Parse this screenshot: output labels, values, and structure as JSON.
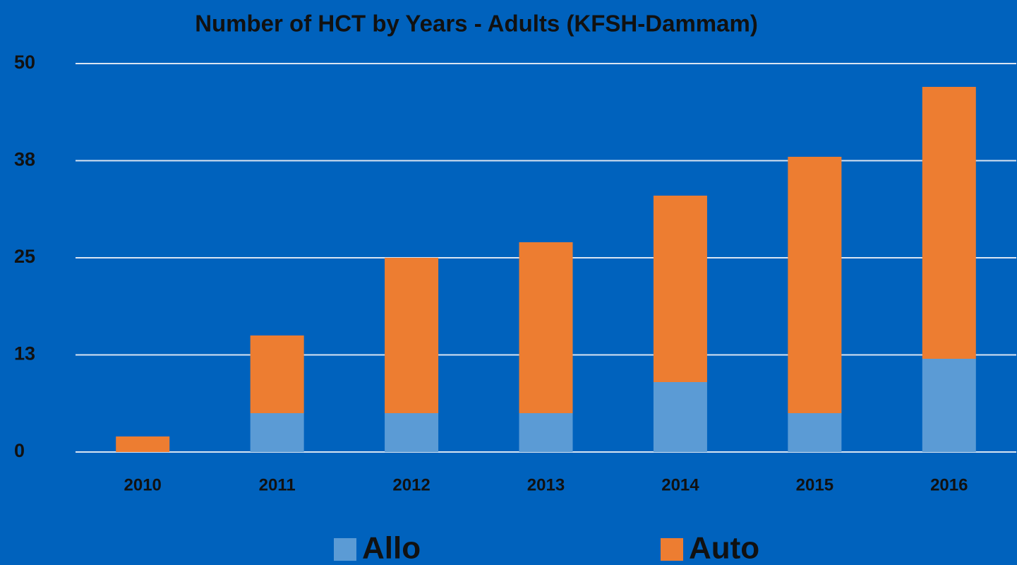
{
  "chart_data": {
    "type": "stacked_bar",
    "title": "Number of HCT by Years - Adults (KFSH-Dammam)",
    "categories": [
      "2010",
      "2011",
      "2012",
      "2013",
      "2014",
      "2015",
      "2016"
    ],
    "series": [
      {
        "name": "Allo",
        "color": "#5b9bd5",
        "values": [
          0,
          5,
          5,
          5,
          9,
          5,
          12
        ]
      },
      {
        "name": "Auto",
        "color": "#ed7d31",
        "values": [
          2,
          10,
          20,
          22,
          24,
          33,
          35
        ]
      }
    ],
    "ylim": [
      0,
      50
    ],
    "yticks": [
      0,
      {
        "value": 12.5,
        "label": "13"
      },
      25,
      {
        "value": 37.5,
        "label": "38"
      },
      50
    ],
    "grid": true,
    "legend": "bottom"
  }
}
